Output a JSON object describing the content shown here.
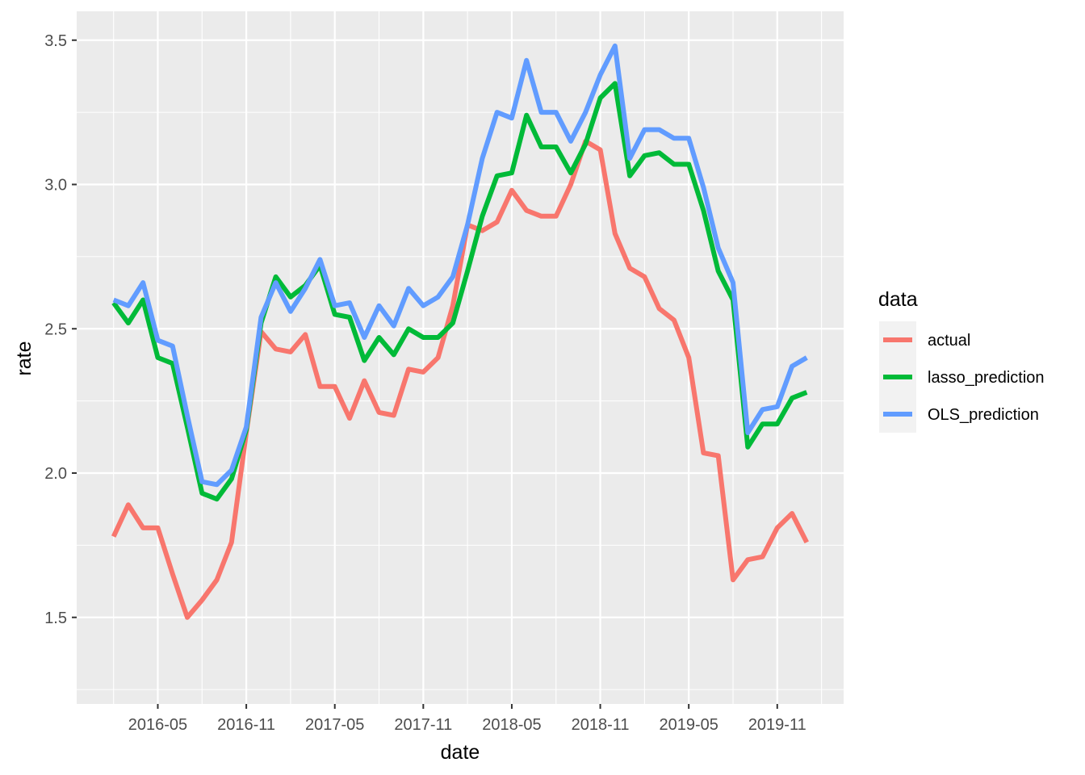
{
  "chart_data": {
    "type": "line",
    "xlabel": "date",
    "ylabel": "rate",
    "legend_title": "data",
    "legend_position": "right",
    "grid": true,
    "background": "#ebebeb",
    "ylim": [
      1.2,
      3.6
    ],
    "y_ticks": [
      "1.5",
      "2.0",
      "2.5",
      "3.0",
      "3.5"
    ],
    "x_ticks": [
      "2016-05",
      "2016-11",
      "2017-05",
      "2017-11",
      "2018-05",
      "2018-11",
      "2019-05",
      "2019-11"
    ],
    "x": [
      "2016-02",
      "2016-03",
      "2016-04",
      "2016-05",
      "2016-06",
      "2016-07",
      "2016-08",
      "2016-09",
      "2016-10",
      "2016-11",
      "2016-12",
      "2017-01",
      "2017-02",
      "2017-03",
      "2017-04",
      "2017-05",
      "2017-06",
      "2017-07",
      "2017-08",
      "2017-09",
      "2017-10",
      "2017-11",
      "2017-12",
      "2018-01",
      "2018-02",
      "2018-03",
      "2018-04",
      "2018-05",
      "2018-06",
      "2018-07",
      "2018-08",
      "2018-09",
      "2018-10",
      "2018-11",
      "2018-12",
      "2019-01",
      "2019-02",
      "2019-03",
      "2019-04",
      "2019-05",
      "2019-06",
      "2019-07",
      "2019-08",
      "2019-09",
      "2019-10",
      "2019-11",
      "2019-12",
      "2020-01"
    ],
    "series": [
      {
        "name": "actual",
        "color": "#f8766d",
        "values": [
          1.78,
          1.89,
          1.81,
          1.81,
          1.65,
          1.5,
          1.56,
          1.63,
          1.76,
          2.14,
          2.49,
          2.43,
          2.42,
          2.48,
          2.3,
          2.3,
          2.19,
          2.32,
          2.21,
          2.2,
          2.36,
          2.35,
          2.4,
          2.58,
          2.86,
          2.84,
          2.87,
          2.98,
          2.91,
          2.89,
          2.89,
          3.0,
          3.15,
          3.12,
          2.83,
          2.71,
          2.68,
          2.57,
          2.53,
          2.4,
          2.07,
          2.06,
          1.63,
          1.7,
          1.71,
          1.81,
          1.86,
          1.76
        ]
      },
      {
        "name": "lasso_prediction",
        "color": "#00ba38",
        "values": [
          2.59,
          2.52,
          2.6,
          2.4,
          2.38,
          2.16,
          1.93,
          1.91,
          1.98,
          2.15,
          2.52,
          2.68,
          2.61,
          2.65,
          2.72,
          2.55,
          2.54,
          2.39,
          2.47,
          2.41,
          2.5,
          2.47,
          2.47,
          2.52,
          2.7,
          2.89,
          3.03,
          3.04,
          3.24,
          3.13,
          3.13,
          3.04,
          3.14,
          3.3,
          3.35,
          3.03,
          3.1,
          3.11,
          3.07,
          3.07,
          2.91,
          2.7,
          2.6,
          2.09,
          2.17,
          2.17,
          2.26,
          2.28
        ]
      },
      {
        "name": "OLS_prediction",
        "color": "#619cff",
        "values": [
          2.6,
          2.58,
          2.66,
          2.46,
          2.44,
          2.2,
          1.97,
          1.96,
          2.01,
          2.16,
          2.54,
          2.66,
          2.56,
          2.64,
          2.74,
          2.58,
          2.59,
          2.47,
          2.58,
          2.51,
          2.64,
          2.58,
          2.61,
          2.68,
          2.86,
          3.09,
          3.25,
          3.23,
          3.43,
          3.25,
          3.25,
          3.15,
          3.25,
          3.38,
          3.48,
          3.09,
          3.19,
          3.19,
          3.16,
          3.16,
          2.99,
          2.78,
          2.66,
          2.14,
          2.22,
          2.23,
          2.37,
          2.4
        ]
      }
    ]
  }
}
